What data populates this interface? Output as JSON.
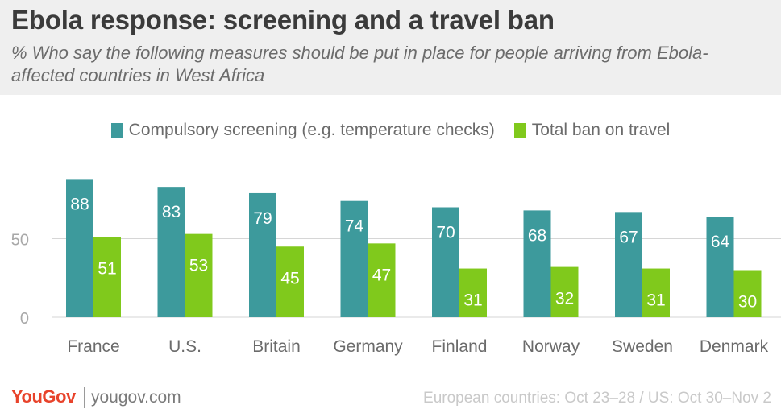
{
  "title": "Ebola response: screening and a travel ban",
  "subtitle": "% Who say the following measures should be put in place for people arriving from Ebola-affected countries in West Africa",
  "footer": {
    "logo": "YouGov",
    "site": "yougov.com",
    "note": "European countries: Oct 23–28 / US: Oct 30–Nov 2"
  },
  "chart_data": {
    "type": "bar",
    "categories": [
      "France",
      "U.S.",
      "Britain",
      "Germany",
      "Finland",
      "Norway",
      "Sweden",
      "Denmark"
    ],
    "series": [
      {
        "name": "Compulsory screening (e.g. temperature checks)",
        "values": [
          88,
          83,
          79,
          74,
          70,
          68,
          67,
          64
        ],
        "color": "#3d9a9c"
      },
      {
        "name": "Total ban on travel",
        "values": [
          51,
          53,
          45,
          47,
          31,
          32,
          31,
          30
        ],
        "color": "#80c91c"
      }
    ],
    "yticks": [
      0,
      50
    ],
    "ylim": [
      0,
      100
    ],
    "grid": true,
    "legend": "top-center",
    "data_labels": true
  }
}
